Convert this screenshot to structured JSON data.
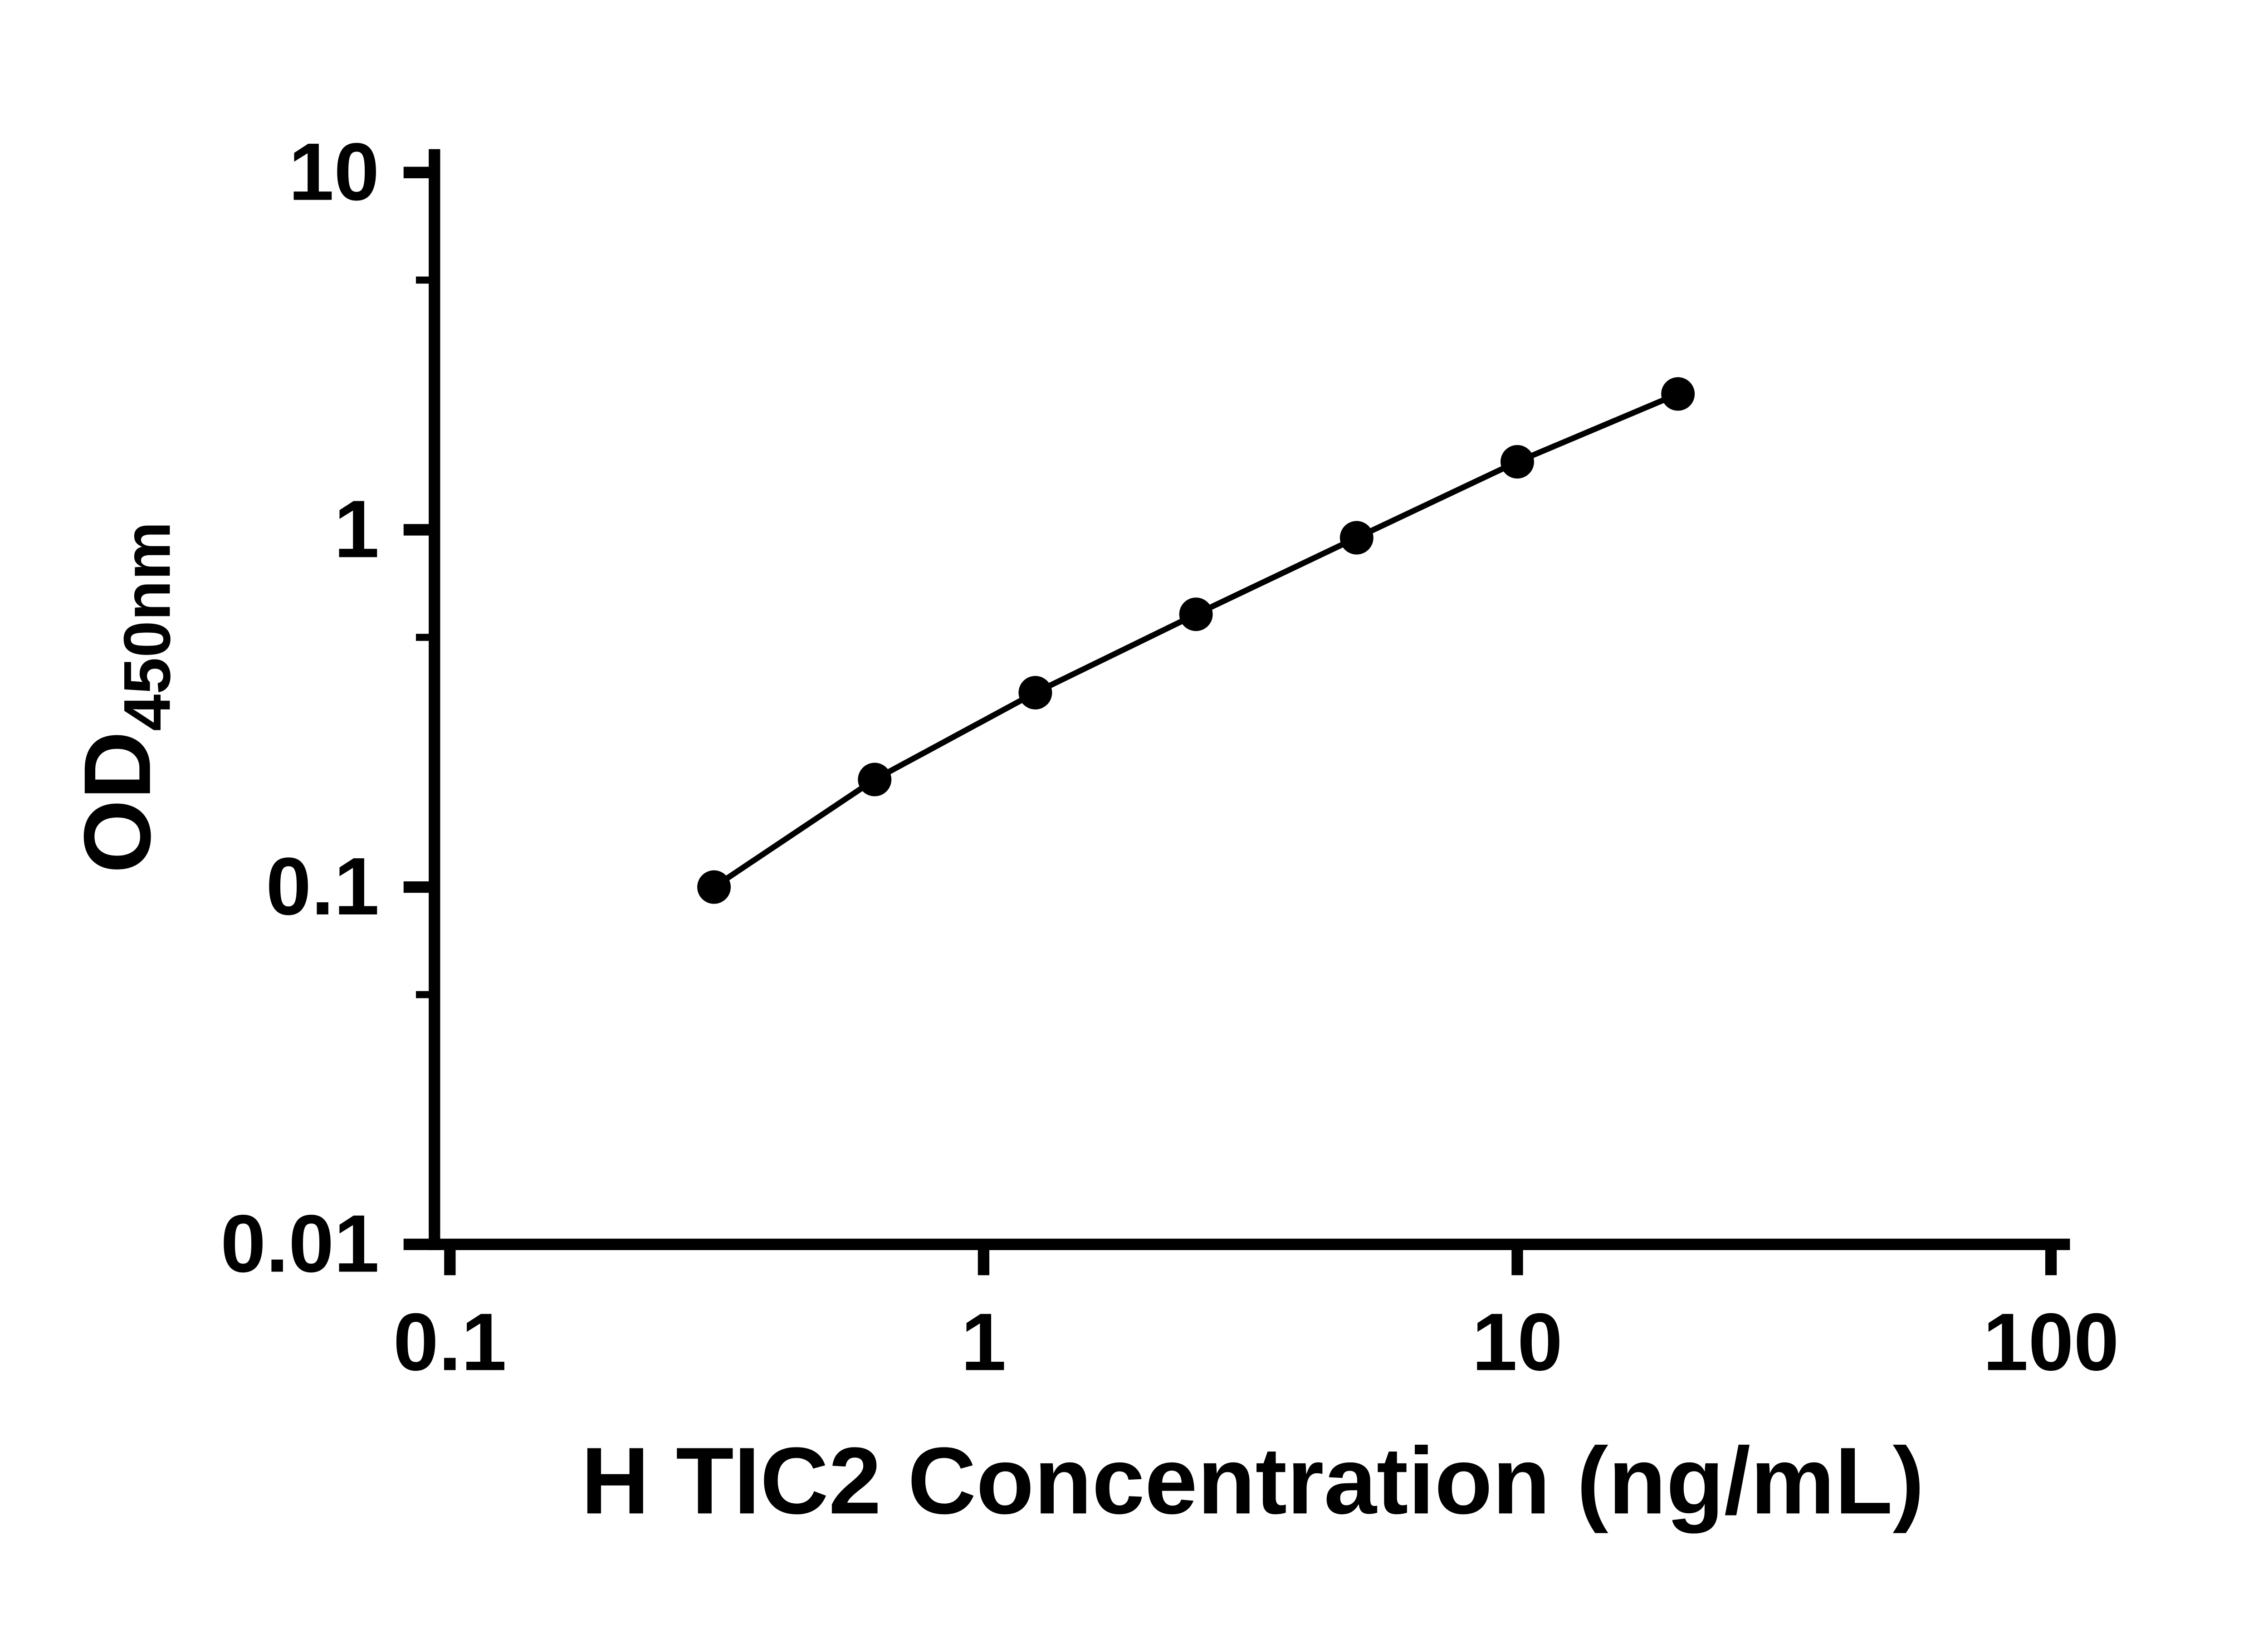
{
  "chart_data": {
    "type": "scatter",
    "title": "",
    "xlabel": "H TIC2 Concentration (ng/mL)",
    "ylabel": "OD",
    "ylabel_subscript": "450nm",
    "x_scale": "log",
    "y_scale": "log",
    "xlim": [
      0.1,
      100
    ],
    "ylim": [
      0.01,
      10
    ],
    "x_ticks": [
      0.1,
      1,
      10,
      100
    ],
    "x_tick_labels": [
      "0.1",
      "1",
      "10",
      "100"
    ],
    "y_ticks": [
      0.01,
      0.1,
      1,
      10
    ],
    "y_tick_labels": [
      "0.01",
      "0.1",
      "1",
      "10"
    ],
    "y_minor_ticks": [
      0.05,
      0.5,
      5
    ],
    "grid": false,
    "legend": false,
    "background_color": "#ffffff",
    "axis_color": "#000000",
    "marker_color": "#000000",
    "line_color": "#000000",
    "series": [
      {
        "marker": "circle",
        "line": true,
        "x": [
          0.3125,
          0.625,
          1.25,
          2.5,
          5,
          10,
          20
        ],
        "y": [
          0.1,
          0.2,
          0.35,
          0.58,
          0.95,
          1.55,
          2.4
        ]
      }
    ]
  }
}
